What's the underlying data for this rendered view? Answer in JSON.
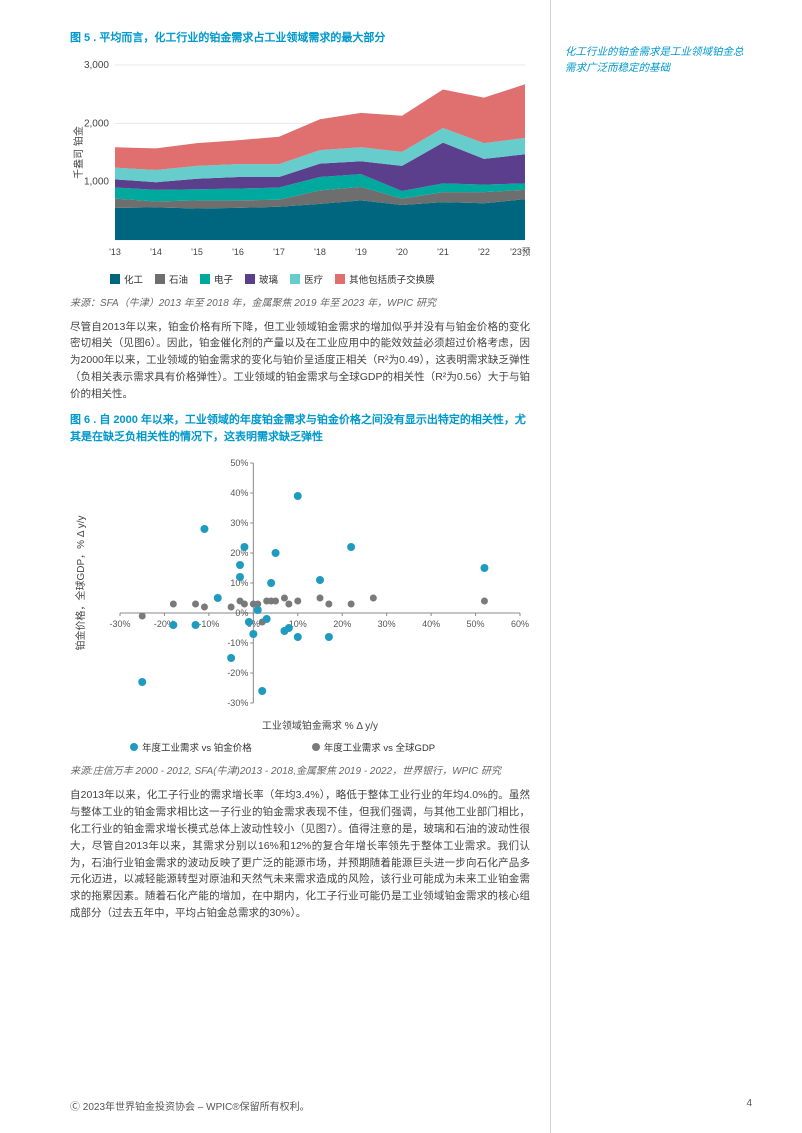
{
  "fig5": {
    "title": "图 5 . 平均而言，化工行业的铂金需求占工业领域需求的最大部分",
    "ylabel": "千盎司 铂金",
    "ymax_label": "3,000",
    "ymid_label": "2,000",
    "ylow_label": "1,000",
    "categories": [
      "'13",
      "'14",
      "'15",
      "'16",
      "'17",
      "'18",
      "'19",
      "'20",
      "'21",
      "'22",
      "'23预测"
    ],
    "series": [
      {
        "name": "化工",
        "color": "#006680",
        "values": [
          550,
          560,
          540,
          550,
          570,
          620,
          680,
          600,
          650,
          630,
          700
        ]
      },
      {
        "name": "石油",
        "color": "#6e6e6e",
        "values": [
          160,
          100,
          140,
          130,
          120,
          230,
          230,
          110,
          170,
          190,
          160
        ]
      },
      {
        "name": "电子",
        "color": "#00a99d",
        "values": [
          190,
          200,
          190,
          200,
          210,
          230,
          220,
          130,
          150,
          130,
          110
        ]
      },
      {
        "name": "玻璃",
        "color": "#5b3f8c",
        "values": [
          140,
          130,
          180,
          200,
          180,
          230,
          220,
          430,
          700,
          440,
          500
        ]
      },
      {
        "name": "医疗",
        "color": "#66cccc",
        "values": [
          200,
          210,
          220,
          220,
          220,
          230,
          240,
          240,
          250,
          270,
          280
        ]
      },
      {
        "name": "其他包括质子交换膜",
        "color": "#e07070",
        "values": [
          350,
          370,
          390,
          410,
          470,
          530,
          590,
          620,
          660,
          780,
          920
        ]
      }
    ],
    "ylim": [
      0,
      3000
    ],
    "grid_color": "#e8e8e8",
    "source": "来源：SFA（牛津）2013 年至 2018 年，金属聚焦 2019 年至 2023 年，WPIC 研究"
  },
  "sidebar": {
    "text": "化工行业的铂金需求是工业领域铂金总需求广泛而稳定的基础"
  },
  "para1": "尽管自2013年以来，铂金价格有所下降，但工业领域铂金需求的增加似乎并没有与铂金价格的变化密切相关（见图6）。因此，铂金催化剂的产量以及在工业应用中的能效效益必须超过价格考虑，因为2000年以来，工业领域的铂金需求的变化与铂价呈适度正相关（R²为0.49），这表明需求缺乏弹性（负相关表示需求具有价格弹性）。工业领域的铂金需求与全球GDP的相关性（R²为0.56）大于与铂价的相关性。",
  "fig6": {
    "title": "图 6 . 自 2000 年以来，工业领域的年度铂金需求与铂金价格之间没有显示出特定的相关性，尤其是在缺乏负相关性的情况下，这表明需求缺乏弹性",
    "xlabel": "工业领域铂金需求    % Δ y/y",
    "ylabel": "铂金价格，全球GDP，% Δ y/y",
    "xlim": [
      -30,
      60
    ],
    "ylim": [
      -30,
      50
    ],
    "xticks": [
      "-30%",
      "-20%",
      "-10%",
      "0%",
      "10%",
      "20%",
      "30%",
      "40%",
      "50%",
      "60%"
    ],
    "yticks": [
      "-30%",
      "-20%",
      "-10%",
      "0%",
      "10%",
      "20%",
      "30%",
      "40%",
      "50%"
    ],
    "series1": {
      "name": "年度工业需求 vs 铂金价格",
      "color": "#1f9bbf",
      "points": [
        [
          -25,
          -23
        ],
        [
          -18,
          -4
        ],
        [
          -13,
          -4
        ],
        [
          -11,
          28
        ],
        [
          -8,
          5
        ],
        [
          -5,
          -15
        ],
        [
          -3,
          12
        ],
        [
          -3,
          16
        ],
        [
          -2,
          22
        ],
        [
          -1,
          -3
        ],
        [
          0,
          -7
        ],
        [
          1,
          1
        ],
        [
          2,
          -26
        ],
        [
          3,
          -2
        ],
        [
          4,
          10
        ],
        [
          5,
          20
        ],
        [
          7,
          -6
        ],
        [
          8,
          -5
        ],
        [
          10,
          39
        ],
        [
          10,
          -8
        ],
        [
          15,
          11
        ],
        [
          17,
          -8
        ],
        [
          22,
          22
        ],
        [
          52,
          15
        ]
      ]
    },
    "series2": {
      "name": "年度工业需求 vs 全球GDP",
      "color": "#7a7a7a",
      "points": [
        [
          -25,
          -1
        ],
        [
          -18,
          3
        ],
        [
          -13,
          3
        ],
        [
          -11,
          2
        ],
        [
          -8,
          5
        ],
        [
          -5,
          2
        ],
        [
          -3,
          4
        ],
        [
          -2,
          3
        ],
        [
          0,
          3
        ],
        [
          1,
          3
        ],
        [
          2,
          -3
        ],
        [
          3,
          4
        ],
        [
          4,
          4
        ],
        [
          5,
          4
        ],
        [
          7,
          5
        ],
        [
          8,
          3
        ],
        [
          10,
          4
        ],
        [
          15,
          5
        ],
        [
          17,
          3
        ],
        [
          22,
          3
        ],
        [
          27,
          5
        ],
        [
          52,
          4
        ]
      ]
    },
    "grid_color": "#d8d8d8",
    "source": "来源:庄信万丰 2000 - 2012, SFA(牛津)2013 - 2018,金属聚焦 2019 - 2022，世界银行，WPIC 研究"
  },
  "para2": "自2013年以来，化工子行业的需求增长率（年均3.4%），略低于整体工业行业的年均4.0%的。虽然与整体工业的铂金需求相比这一子行业的铂金需求表现不佳，但我们强调，与其他工业部门相比，化工行业的铂金需求增长模式总体上波动性较小（见图7）。值得注意的是，玻璃和石油的波动性很大，尽管自2013年以来，其需求分别以16%和12%的复合年增长率领先于整体工业需求。我们认为，石油行业铂金需求的波动反映了更广泛的能源市场，并预期随着能源巨头进一步向石化产品多元化迈进，以减轻能源转型对原油和天然气未来需求造成的风险，该行业可能成为未来工业铂金需求的拖累因素。随着石化产能的增加，在中期内，化工子行业可能仍是工业领域铂金需求的核心组成部分（过去五年中，平均占铂金总需求的30%）。",
  "footer": {
    "copyright": "Ⓒ  2023年世界铂金投资协会 – WPIC®保留所有权利。",
    "page": "4"
  }
}
